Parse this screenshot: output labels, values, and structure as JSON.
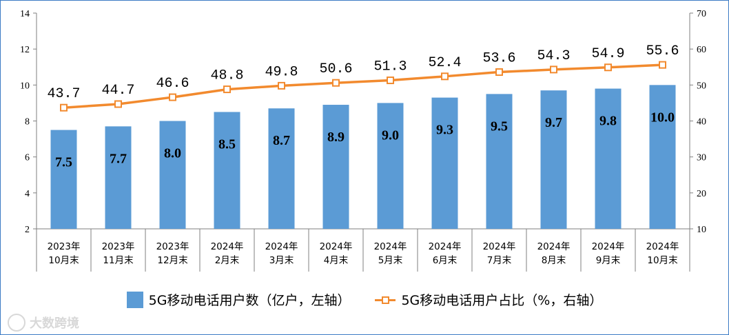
{
  "chart_data": {
    "type": "bar+line",
    "categories": [
      [
        "2023年",
        "10月末"
      ],
      [
        "2023年",
        "11月末"
      ],
      [
        "2023年",
        "12月末"
      ],
      [
        "2024年",
        "2月末"
      ],
      [
        "2024年",
        "3月末"
      ],
      [
        "2024年",
        "4月末"
      ],
      [
        "2024年",
        "5月末"
      ],
      [
        "2024年",
        "6月末"
      ],
      [
        "2024年",
        "7月末"
      ],
      [
        "2024年",
        "8月末"
      ],
      [
        "2024年",
        "9月末"
      ],
      [
        "2024年",
        "10月末"
      ]
    ],
    "series": [
      {
        "name": "5G移动电话用户数（亿户，左轴）",
        "type": "bar",
        "axis": "left",
        "color": "#5b9bd5",
        "values": [
          7.5,
          7.7,
          8.0,
          8.5,
          8.7,
          8.9,
          9.0,
          9.3,
          9.5,
          9.7,
          9.8,
          10.0
        ],
        "labels": [
          "7.5",
          "7.7",
          "8.0",
          "8.5",
          "8.7",
          "8.9",
          "9.0",
          "9.3",
          "9.5",
          "9.7",
          "9.8",
          "10.0"
        ]
      },
      {
        "name": "5G移动电话用户占比（%，右轴）",
        "type": "line",
        "axis": "right",
        "color": "#f28a2e",
        "values": [
          43.7,
          44.7,
          46.6,
          48.8,
          49.8,
          50.6,
          51.3,
          52.4,
          53.6,
          54.3,
          54.9,
          55.6
        ],
        "labels": [
          "43.7",
          "44.7",
          "46.6",
          "48.8",
          "49.8",
          "50.6",
          "51.3",
          "52.4",
          "53.6",
          "54.3",
          "54.9",
          "55.6"
        ]
      }
    ],
    "y_left": {
      "min": 2,
      "max": 14,
      "ticks": [
        "2",
        "4",
        "6",
        "8",
        "10",
        "12",
        "14"
      ]
    },
    "y_right": {
      "min": 10,
      "max": 70,
      "ticks": [
        "10",
        "20",
        "30",
        "40",
        "50",
        "60",
        "70"
      ]
    },
    "legend_position": "bottom",
    "grid": false
  },
  "watermark": {
    "text": "大数跨境"
  }
}
